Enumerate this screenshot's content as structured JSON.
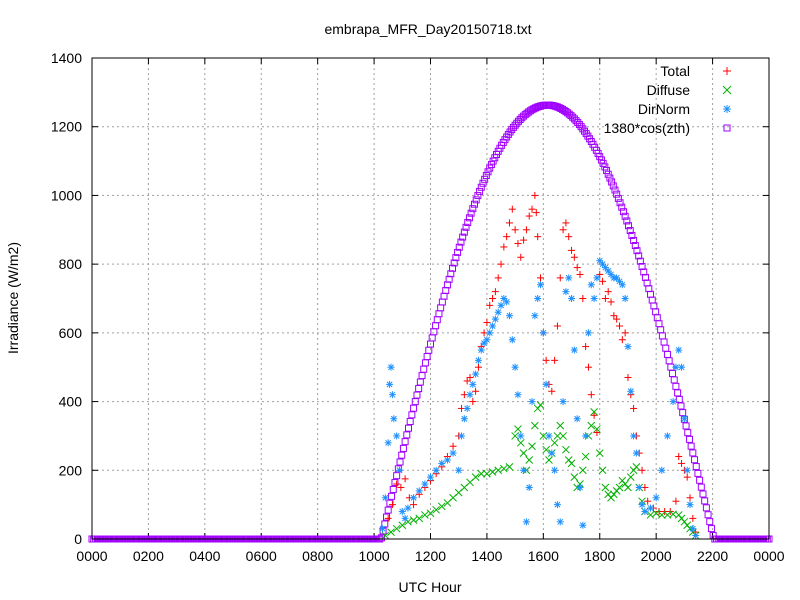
{
  "chart_data": {
    "type": "scatter",
    "title": "embrapa_MFR_Day20150718.txt",
    "xlabel": "UTC Hour",
    "ylabel": "Irradiance (W/m2)",
    "xlim": [
      0,
      2400
    ],
    "ylim": [
      0,
      1400
    ],
    "xticks": [
      "0000",
      "0200",
      "0400",
      "0600",
      "0800",
      "1000",
      "1200",
      "1400",
      "1600",
      "1800",
      "2000",
      "2200",
      "0000"
    ],
    "yticks": [
      0,
      200,
      400,
      600,
      800,
      1000,
      1200,
      1400
    ],
    "grid": true,
    "legend_position": "top-right",
    "series": [
      {
        "name": "Total",
        "marker": "+",
        "color": "#ff0000",
        "points": [
          [
            1050,
            60
          ],
          [
            1065,
            100
          ],
          [
            1080,
            160
          ],
          [
            1095,
            150
          ],
          [
            1110,
            175
          ],
          [
            1125,
            120
          ],
          [
            1140,
            100
          ],
          [
            1160,
            130
          ],
          [
            1180,
            150
          ],
          [
            1200,
            170
          ],
          [
            1220,
            190
          ],
          [
            1240,
            210
          ],
          [
            1260,
            240
          ],
          [
            1280,
            270
          ],
          [
            1300,
            300
          ],
          [
            1310,
            380
          ],
          [
            1320,
            420
          ],
          [
            1330,
            460
          ],
          [
            1340,
            470
          ],
          [
            1350,
            400
          ],
          [
            1360,
            430
          ],
          [
            1370,
            500
          ],
          [
            1380,
            560
          ],
          [
            1390,
            600
          ],
          [
            1400,
            630
          ],
          [
            1410,
            680
          ],
          [
            1420,
            700
          ],
          [
            1430,
            720
          ],
          [
            1440,
            760
          ],
          [
            1450,
            800
          ],
          [
            1460,
            850
          ],
          [
            1470,
            880
          ],
          [
            1480,
            920
          ],
          [
            1490,
            960
          ],
          [
            1500,
            900
          ],
          [
            1510,
            860
          ],
          [
            1520,
            820
          ],
          [
            1530,
            870
          ],
          [
            1540,
            900
          ],
          [
            1550,
            940
          ],
          [
            1560,
            960
          ],
          [
            1570,
            1000
          ],
          [
            1575,
            950
          ],
          [
            1580,
            880
          ],
          [
            1590,
            760
          ],
          [
            1600,
            600
          ],
          [
            1610,
            520
          ],
          [
            1620,
            450
          ],
          [
            1630,
            430
          ],
          [
            1640,
            520
          ],
          [
            1650,
            620
          ],
          [
            1660,
            760
          ],
          [
            1670,
            900
          ],
          [
            1680,
            920
          ],
          [
            1690,
            880
          ],
          [
            1700,
            840
          ],
          [
            1710,
            820
          ],
          [
            1720,
            790
          ],
          [
            1730,
            770
          ],
          [
            1740,
            700
          ],
          [
            1750,
            560
          ],
          [
            1760,
            500
          ],
          [
            1770,
            420
          ],
          [
            1780,
            360
          ],
          [
            1790,
            310
          ],
          [
            1800,
            770
          ],
          [
            1810,
            750
          ],
          [
            1820,
            700
          ],
          [
            1830,
            720
          ],
          [
            1840,
            690
          ],
          [
            1850,
            650
          ],
          [
            1860,
            640
          ],
          [
            1870,
            620
          ],
          [
            1880,
            580
          ],
          [
            1890,
            600
          ],
          [
            1900,
            470
          ],
          [
            1910,
            420
          ],
          [
            1920,
            380
          ],
          [
            1930,
            300
          ],
          [
            1940,
            250
          ],
          [
            1950,
            200
          ],
          [
            1960,
            150
          ],
          [
            1970,
            110
          ],
          [
            1990,
            90
          ],
          [
            2010,
            80
          ],
          [
            2030,
            80
          ],
          [
            2050,
            80
          ],
          [
            2070,
            110
          ],
          [
            2080,
            240
          ],
          [
            2090,
            220
          ],
          [
            2100,
            200
          ],
          [
            2110,
            180
          ],
          [
            2120,
            120
          ],
          [
            2130,
            60
          ],
          [
            2140,
            20
          ]
        ]
      },
      {
        "name": "Diffuse",
        "marker": "x",
        "color": "#00b000",
        "points": [
          [
            1040,
            10
          ],
          [
            1060,
            20
          ],
          [
            1080,
            30
          ],
          [
            1100,
            40
          ],
          [
            1120,
            50
          ],
          [
            1140,
            55
          ],
          [
            1160,
            60
          ],
          [
            1180,
            70
          ],
          [
            1200,
            75
          ],
          [
            1220,
            85
          ],
          [
            1240,
            95
          ],
          [
            1260,
            105
          ],
          [
            1280,
            120
          ],
          [
            1300,
            135
          ],
          [
            1320,
            150
          ],
          [
            1340,
            165
          ],
          [
            1360,
            180
          ],
          [
            1380,
            190
          ],
          [
            1400,
            190
          ],
          [
            1420,
            195
          ],
          [
            1440,
            200
          ],
          [
            1460,
            205
          ],
          [
            1480,
            210
          ],
          [
            1500,
            300
          ],
          [
            1510,
            320
          ],
          [
            1520,
            280
          ],
          [
            1530,
            250
          ],
          [
            1540,
            200
          ],
          [
            1550,
            230
          ],
          [
            1560,
            270
          ],
          [
            1570,
            330
          ],
          [
            1580,
            380
          ],
          [
            1590,
            390
          ],
          [
            1600,
            300
          ],
          [
            1610,
            260
          ],
          [
            1620,
            230
          ],
          [
            1630,
            250
          ],
          [
            1640,
            280
          ],
          [
            1650,
            300
          ],
          [
            1660,
            330
          ],
          [
            1670,
            300
          ],
          [
            1680,
            260
          ],
          [
            1690,
            230
          ],
          [
            1700,
            220
          ],
          [
            1710,
            180
          ],
          [
            1720,
            150
          ],
          [
            1730,
            160
          ],
          [
            1740,
            200
          ],
          [
            1750,
            240
          ],
          [
            1760,
            300
          ],
          [
            1770,
            330
          ],
          [
            1780,
            370
          ],
          [
            1790,
            320
          ],
          [
            1800,
            250
          ],
          [
            1810,
            200
          ],
          [
            1820,
            150
          ],
          [
            1830,
            130
          ],
          [
            1840,
            120
          ],
          [
            1850,
            130
          ],
          [
            1860,
            140
          ],
          [
            1870,
            150
          ],
          [
            1880,
            170
          ],
          [
            1890,
            160
          ],
          [
            1900,
            150
          ],
          [
            1910,
            180
          ],
          [
            1920,
            200
          ],
          [
            1930,
            210
          ],
          [
            1940,
            150
          ],
          [
            1950,
            110
          ],
          [
            1960,
            80
          ],
          [
            1980,
            70
          ],
          [
            2000,
            75
          ],
          [
            2020,
            70
          ],
          [
            2040,
            70
          ],
          [
            2060,
            72
          ],
          [
            2080,
            70
          ],
          [
            2090,
            60
          ],
          [
            2100,
            50
          ],
          [
            2110,
            40
          ],
          [
            2120,
            30
          ],
          [
            2130,
            20
          ],
          [
            2140,
            10
          ]
        ]
      },
      {
        "name": "DirNorm",
        "marker": "*",
        "color": "#1e90ff",
        "points": [
          [
            1030,
            30
          ],
          [
            1040,
            120
          ],
          [
            1050,
            280
          ],
          [
            1055,
            450
          ],
          [
            1060,
            500
          ],
          [
            1065,
            420
          ],
          [
            1070,
            350
          ],
          [
            1080,
            300
          ],
          [
            1090,
            200
          ],
          [
            1100,
            80
          ],
          [
            1110,
            60
          ],
          [
            1120,
            90
          ],
          [
            1140,
            120
          ],
          [
            1160,
            140
          ],
          [
            1180,
            160
          ],
          [
            1200,
            180
          ],
          [
            1220,
            200
          ],
          [
            1240,
            220
          ],
          [
            1260,
            230
          ],
          [
            1280,
            250
          ],
          [
            1300,
            200
          ],
          [
            1310,
            300
          ],
          [
            1320,
            350
          ],
          [
            1330,
            380
          ],
          [
            1340,
            420
          ],
          [
            1350,
            450
          ],
          [
            1360,
            480
          ],
          [
            1370,
            520
          ],
          [
            1380,
            550
          ],
          [
            1390,
            570
          ],
          [
            1400,
            580
          ],
          [
            1410,
            600
          ],
          [
            1420,
            620
          ],
          [
            1430,
            640
          ],
          [
            1440,
            660
          ],
          [
            1450,
            680
          ],
          [
            1460,
            700
          ],
          [
            1470,
            690
          ],
          [
            1480,
            650
          ],
          [
            1490,
            580
          ],
          [
            1500,
            500
          ],
          [
            1510,
            420
          ],
          [
            1520,
            300
          ],
          [
            1530,
            200
          ],
          [
            1540,
            50
          ],
          [
            1550,
            150
          ],
          [
            1560,
            400
          ],
          [
            1570,
            650
          ],
          [
            1580,
            700
          ],
          [
            1590,
            740
          ],
          [
            1600,
            600
          ],
          [
            1610,
            450
          ],
          [
            1620,
            300
          ],
          [
            1630,
            250
          ],
          [
            1640,
            200
          ],
          [
            1650,
            100
          ],
          [
            1660,
            50
          ],
          [
            1670,
            400
          ],
          [
            1680,
            720
          ],
          [
            1690,
            760
          ],
          [
            1700,
            700
          ],
          [
            1710,
            550
          ],
          [
            1720,
            350
          ],
          [
            1730,
            150
          ],
          [
            1740,
            40
          ],
          [
            1750,
            300
          ],
          [
            1760,
            600
          ],
          [
            1770,
            740
          ],
          [
            1780,
            700
          ],
          [
            1790,
            760
          ],
          [
            1800,
            810
          ],
          [
            1810,
            800
          ],
          [
            1820,
            790
          ],
          [
            1830,
            780
          ],
          [
            1840,
            770
          ],
          [
            1850,
            760
          ],
          [
            1860,
            760
          ],
          [
            1870,
            750
          ],
          [
            1880,
            740
          ],
          [
            1890,
            700
          ],
          [
            1900,
            560
          ],
          [
            1910,
            430
          ],
          [
            1920,
            300
          ],
          [
            1930,
            250
          ],
          [
            1940,
            150
          ],
          [
            1950,
            100
          ],
          [
            1960,
            80
          ],
          [
            1980,
            90
          ],
          [
            2000,
            120
          ],
          [
            2020,
            200
          ],
          [
            2040,
            300
          ],
          [
            2060,
            400
          ],
          [
            2070,
            500
          ],
          [
            2080,
            550
          ],
          [
            2090,
            500
          ],
          [
            2100,
            350
          ],
          [
            2110,
            200
          ],
          [
            2120,
            100
          ],
          [
            2130,
            30
          ],
          [
            2140,
            10
          ]
        ]
      },
      {
        "name": "1380*cos(zth)",
        "marker": "square",
        "color": "#a000ff",
        "curve": {
          "sunrise": 1025,
          "sunset": 2205,
          "peak_x": 1615,
          "peak_y": 1263
        }
      }
    ]
  }
}
